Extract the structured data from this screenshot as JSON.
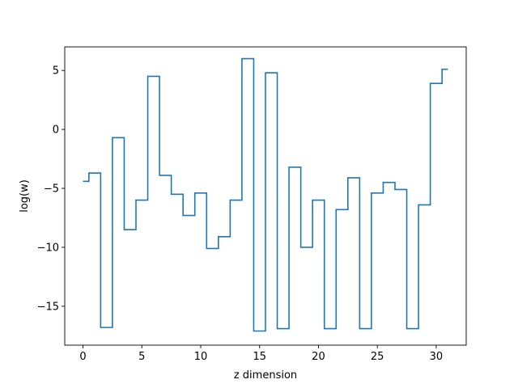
{
  "chart_data": {
    "type": "line",
    "drawstyle": "steps-mid",
    "xlabel": "z dimension",
    "ylabel": "log(w)",
    "xlim": [
      -1.55,
      32.55
    ],
    "ylim": [
      -18.3,
      7.0
    ],
    "xticks": [
      0,
      5,
      10,
      15,
      20,
      25,
      30
    ],
    "xtick_labels": [
      "0",
      "5",
      "10",
      "15",
      "20",
      "25",
      "30"
    ],
    "yticks": [
      5,
      0,
      -5,
      -10,
      -15
    ],
    "ytick_labels": [
      "5",
      "0",
      "−5",
      "−10",
      "−15"
    ],
    "grid": false,
    "series": [
      {
        "color": "#1f77b4",
        "x": [
          0,
          1,
          2,
          3,
          4,
          5,
          6,
          7,
          8,
          9,
          10,
          11,
          12,
          13,
          14,
          15,
          16,
          17,
          18,
          19,
          20,
          21,
          22,
          23,
          24,
          25,
          26,
          27,
          28,
          29,
          30,
          31
        ],
        "y": [
          -4.4,
          -3.7,
          -16.8,
          -0.7,
          -8.5,
          -6.0,
          4.5,
          -3.9,
          -5.5,
          -7.3,
          -5.4,
          -10.1,
          -9.1,
          -6.0,
          6.0,
          -17.1,
          4.8,
          -16.9,
          -3.2,
          -10.0,
          -6.0,
          -16.9,
          -6.8,
          -4.1,
          -16.9,
          -5.4,
          -4.5,
          -5.1,
          -16.9,
          -6.4,
          3.9,
          5.1
        ]
      }
    ]
  }
}
